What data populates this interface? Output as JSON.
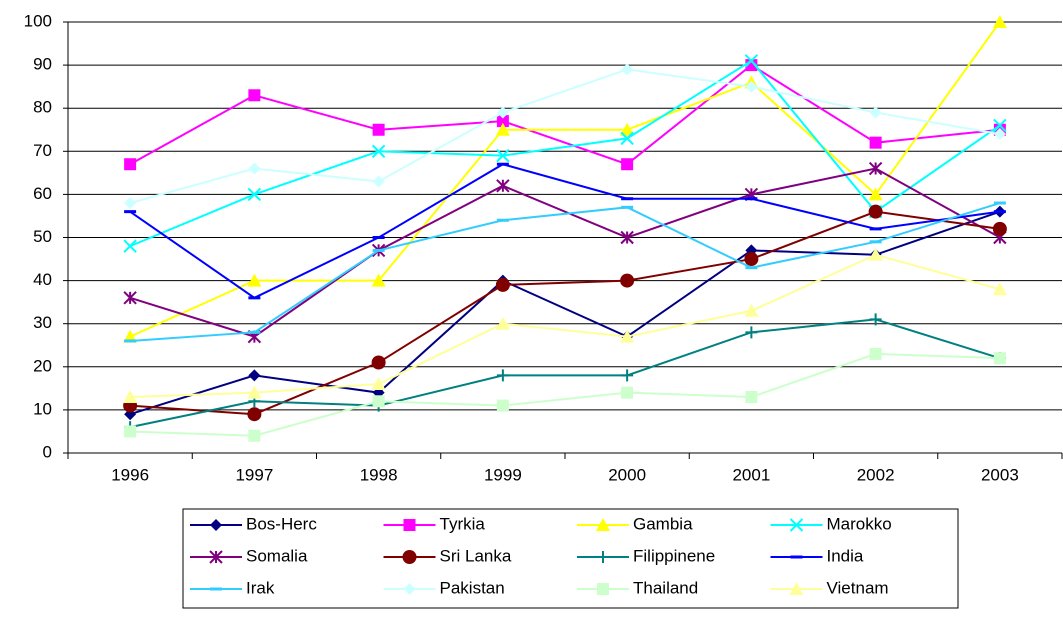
{
  "chart_data": {
    "type": "line",
    "categories": [
      "1996",
      "1997",
      "1998",
      "1999",
      "2000",
      "2001",
      "2002",
      "2003"
    ],
    "ylim": [
      0,
      100
    ],
    "yticks": [
      0,
      10,
      20,
      30,
      40,
      50,
      60,
      70,
      80,
      90,
      100
    ],
    "grid": true,
    "legend": "bottom",
    "series": [
      {
        "name": "Bos-Herc",
        "color": "#000080",
        "marker": "diamond",
        "values": [
          9,
          18,
          14,
          40,
          27,
          47,
          46,
          56
        ]
      },
      {
        "name": "Tyrkia",
        "color": "#ff00ff",
        "marker": "square",
        "values": [
          67,
          83,
          75,
          77,
          67,
          90,
          72,
          75
        ]
      },
      {
        "name": "Gambia",
        "color": "#ffff00",
        "marker": "triangle",
        "values": [
          27,
          40,
          40,
          75,
          75,
          86,
          60,
          100
        ]
      },
      {
        "name": "Marokko",
        "color": "#00ffff",
        "marker": "x",
        "values": [
          48,
          60,
          70,
          69,
          73,
          91,
          56,
          76
        ]
      },
      {
        "name": "Somalia",
        "color": "#800080",
        "marker": "star",
        "values": [
          36,
          27,
          47,
          62,
          50,
          60,
          66,
          50
        ]
      },
      {
        "name": "Sri Lanka",
        "color": "#800000",
        "marker": "circle",
        "values": [
          11,
          9,
          21,
          39,
          40,
          45,
          56,
          52
        ]
      },
      {
        "name": "Filippinene",
        "color": "#008080",
        "marker": "plus",
        "values": [
          6,
          12,
          11,
          18,
          18,
          28,
          31,
          22
        ]
      },
      {
        "name": "India",
        "color": "#0000ff",
        "marker": "dash",
        "values": [
          56,
          36,
          50,
          67,
          59,
          59,
          52,
          56
        ]
      },
      {
        "name": "Irak",
        "color": "#33ccff",
        "marker": "dash",
        "values": [
          26,
          28,
          47,
          54,
          57,
          43,
          49,
          58
        ]
      },
      {
        "name": "Pakistan",
        "color": "#ccffff",
        "marker": "diamond",
        "values": [
          58,
          66,
          63,
          79,
          89,
          85,
          79,
          74
        ]
      },
      {
        "name": "Thailand",
        "color": "#ccffcc",
        "marker": "square",
        "values": [
          5,
          4,
          12,
          11,
          14,
          13,
          23,
          22
        ]
      },
      {
        "name": "Vietnam",
        "color": "#ffff99",
        "marker": "triangle",
        "values": [
          13,
          14,
          16,
          30,
          27,
          33,
          46,
          38
        ]
      }
    ]
  }
}
